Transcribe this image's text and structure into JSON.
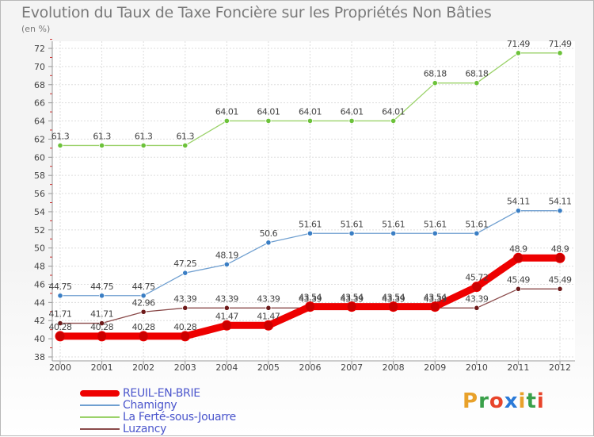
{
  "header": {
    "title": "Evolution du Taux de Taxe Foncière sur les Propriétés Non Bâties",
    "unit": "(en %)"
  },
  "logo": {
    "text": "Proxiti",
    "colors": [
      "#e8a12a",
      "#3aa04a",
      "#e8442a",
      "#2a7ad8",
      "#e8a12a",
      "#3aa04a",
      "#e8442a"
    ]
  },
  "chart_data": {
    "type": "line",
    "title": "Evolution du Taux de Taxe Foncière sur les Propriétés Non Bâties",
    "ylabel": "(en %)",
    "xlabel": "",
    "x": [
      "2000",
      "2001",
      "2002",
      "2003",
      "2004",
      "2005",
      "2006",
      "2007",
      "2008",
      "2009",
      "2010",
      "2011",
      "2012"
    ],
    "ylim": [
      38,
      72
    ],
    "yticks": [
      38,
      40,
      42,
      44,
      46,
      48,
      50,
      52,
      54,
      56,
      58,
      60,
      62,
      64,
      66,
      68,
      70,
      72
    ],
    "grid": true,
    "legend_position": "bottom-left",
    "series": [
      {
        "name": "REUIL-EN-BRIE",
        "color": "#ee0000",
        "marker_color": "#cc0000",
        "width": "thick",
        "values": [
          40.28,
          40.28,
          40.28,
          40.28,
          41.47,
          41.47,
          43.54,
          43.54,
          43.54,
          43.54,
          45.72,
          48.9,
          48.9
        ],
        "labels": [
          "40.28",
          "40.28",
          "40.28",
          "40.28",
          "41.47",
          "41.47",
          "43.54",
          "43.54",
          "43.54",
          "43.54",
          "45.72",
          "48.9",
          "48.9"
        ]
      },
      {
        "name": "Chamigny",
        "color": "#6f9fd0",
        "marker_color": "#3a7ec4",
        "width": "thin",
        "values": [
          44.75,
          44.75,
          44.75,
          47.25,
          48.19,
          50.6,
          51.61,
          51.61,
          51.61,
          51.61,
          51.61,
          54.11,
          54.11
        ],
        "labels": [
          "44.75",
          "44.75",
          "44.75",
          "47.25",
          "48.19",
          "50.6",
          "51.61",
          "51.61",
          "51.61",
          "51.61",
          "51.61",
          "54.11",
          "54.11"
        ]
      },
      {
        "name": "La Ferté-sous-Jouarre",
        "color": "#9bd26a",
        "marker_color": "#6cc23a",
        "width": "thin",
        "values": [
          61.3,
          61.3,
          61.3,
          61.3,
          64.01,
          64.01,
          64.01,
          64.01,
          64.01,
          68.18,
          68.18,
          71.49,
          71.49
        ],
        "labels": [
          "61.3",
          "61.3",
          "61.3",
          "61.3",
          "64.01",
          "64.01",
          "64.01",
          "64.01",
          "64.01",
          "68.18",
          "68.18",
          "71.49",
          "71.49"
        ]
      },
      {
        "name": "Luzancy",
        "color": "#8a4a4a",
        "marker_color": "#6e1a1a",
        "width": "thin",
        "values": [
          41.71,
          41.71,
          42.96,
          43.39,
          43.39,
          43.39,
          43.39,
          43.39,
          43.39,
          43.39,
          43.39,
          45.49,
          45.49
        ],
        "labels": [
          "41.71",
          "41.71",
          "42.96",
          "43.39",
          "43.39",
          "43.39",
          "43.39",
          "43.39",
          "43.39",
          "43.39",
          "43.39",
          "45.49",
          "45.49"
        ]
      }
    ]
  }
}
